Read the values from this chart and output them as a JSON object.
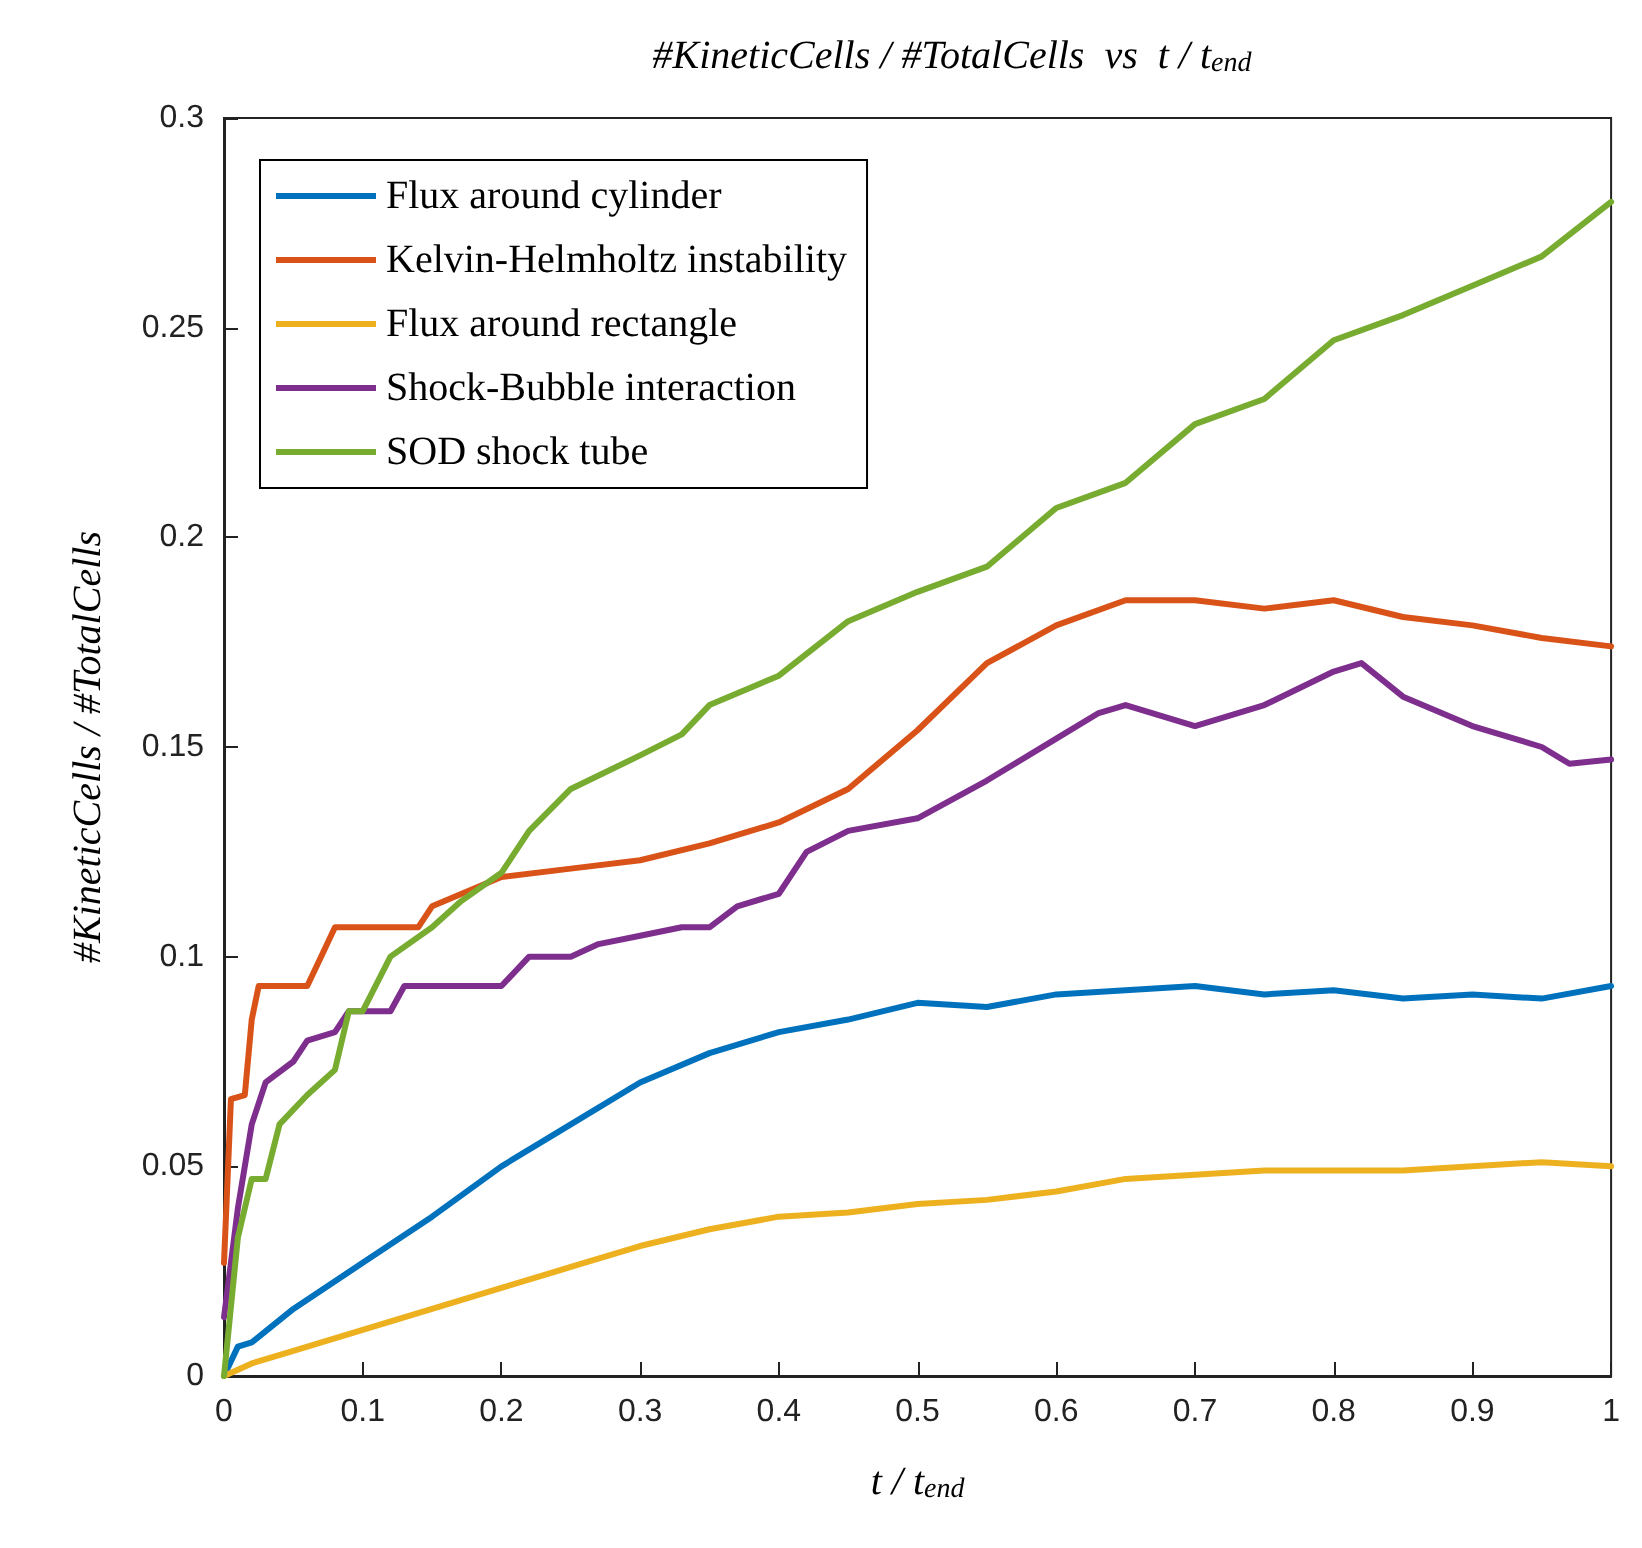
{
  "chart_data": {
    "type": "line",
    "title": "#KineticCells / #TotalCells  vs  t / t$_{end}$",
    "xlabel": "t / t$_{end}$",
    "ylabel": "#KineticCells / #TotalCells",
    "xlim": [
      0,
      1
    ],
    "xticks": [
      0,
      0.1,
      0.2,
      0.3,
      0.4,
      0.5,
      0.6,
      0.7,
      0.8,
      0.9,
      1
    ],
    "ylim": [
      0,
      0.3
    ],
    "yticks": [
      0,
      0.05,
      0.1,
      0.15,
      0.2,
      0.25,
      0.3
    ],
    "grid": false,
    "legend": "top left",
    "marker": "none",
    "line_style": "solid",
    "series": [
      {
        "name": "Flux around cylinder",
        "color": "#0072bd",
        "x": [
          0,
          0.01,
          0.02,
          0.05,
          0.1,
          0.15,
          0.2,
          0.25,
          0.3,
          0.35,
          0.4,
          0.45,
          0.5,
          0.55,
          0.6,
          0.65,
          0.7,
          0.75,
          0.8,
          0.85,
          0.9,
          0.95,
          1
        ],
        "values": [
          0,
          0.007,
          0.008,
          0.016,
          0.027,
          0.038,
          0.05,
          0.06,
          0.07,
          0.077,
          0.082,
          0.085,
          0.089,
          0.088,
          0.091,
          0.092,
          0.093,
          0.091,
          0.092,
          0.09,
          0.091,
          0.09,
          0.093
        ]
      },
      {
        "name": "Kelvin-Helmholtz instability",
        "color": "#d95319",
        "x": [
          0,
          0.005,
          0.015,
          0.02,
          0.025,
          0.06,
          0.07,
          0.08,
          0.14,
          0.15,
          0.2,
          0.25,
          0.3,
          0.35,
          0.4,
          0.45,
          0.5,
          0.55,
          0.6,
          0.65,
          0.7,
          0.75,
          0.8,
          0.85,
          0.9,
          0.95,
          1
        ],
        "values": [
          0.027,
          0.066,
          0.067,
          0.085,
          0.093,
          0.093,
          0.1,
          0.107,
          0.107,
          0.112,
          0.119,
          0.121,
          0.123,
          0.127,
          0.132,
          0.14,
          0.154,
          0.17,
          0.179,
          0.185,
          0.185,
          0.183,
          0.185,
          0.181,
          0.179,
          0.176,
          0.174
        ]
      },
      {
        "name": "Flux around rectangle",
        "color": "#edb120",
        "x": [
          0,
          0.02,
          0.05,
          0.1,
          0.15,
          0.2,
          0.25,
          0.3,
          0.35,
          0.4,
          0.45,
          0.5,
          0.55,
          0.6,
          0.65,
          0.7,
          0.75,
          0.8,
          0.85,
          0.9,
          0.95,
          1
        ],
        "values": [
          0,
          0.003,
          0.006,
          0.011,
          0.016,
          0.021,
          0.026,
          0.031,
          0.035,
          0.038,
          0.039,
          0.041,
          0.042,
          0.044,
          0.047,
          0.048,
          0.049,
          0.049,
          0.049,
          0.05,
          0.051,
          0.05
        ]
      },
      {
        "name": "Shock-Bubble interaction",
        "color": "#7e2f8e",
        "x": [
          0,
          0.01,
          0.02,
          0.03,
          0.05,
          0.06,
          0.08,
          0.09,
          0.12,
          0.13,
          0.2,
          0.22,
          0.25,
          0.27,
          0.3,
          0.33,
          0.35,
          0.37,
          0.4,
          0.42,
          0.45,
          0.5,
          0.55,
          0.6,
          0.63,
          0.65,
          0.7,
          0.75,
          0.8,
          0.82,
          0.85,
          0.9,
          0.95,
          0.97,
          1
        ],
        "values": [
          0.014,
          0.04,
          0.06,
          0.07,
          0.075,
          0.08,
          0.082,
          0.087,
          0.087,
          0.093,
          0.093,
          0.1,
          0.1,
          0.103,
          0.105,
          0.107,
          0.107,
          0.112,
          0.115,
          0.125,
          0.13,
          0.133,
          0.142,
          0.152,
          0.158,
          0.16,
          0.155,
          0.16,
          0.168,
          0.17,
          0.162,
          0.155,
          0.15,
          0.146,
          0.147
        ]
      },
      {
        "name": "SOD shock tube",
        "color": "#77ac30",
        "x": [
          0,
          0.01,
          0.02,
          0.03,
          0.04,
          0.06,
          0.08,
          0.09,
          0.1,
          0.12,
          0.15,
          0.17,
          0.2,
          0.22,
          0.25,
          0.3,
          0.33,
          0.35,
          0.4,
          0.45,
          0.5,
          0.55,
          0.6,
          0.65,
          0.7,
          0.75,
          0.8,
          0.85,
          0.9,
          0.95,
          1
        ],
        "values": [
          0,
          0.033,
          0.047,
          0.047,
          0.06,
          0.067,
          0.073,
          0.087,
          0.087,
          0.1,
          0.107,
          0.113,
          0.12,
          0.13,
          0.14,
          0.148,
          0.153,
          0.16,
          0.167,
          0.18,
          0.187,
          0.193,
          0.207,
          0.213,
          0.227,
          0.233,
          0.247,
          0.253,
          0.26,
          0.267,
          0.28
        ]
      }
    ]
  }
}
